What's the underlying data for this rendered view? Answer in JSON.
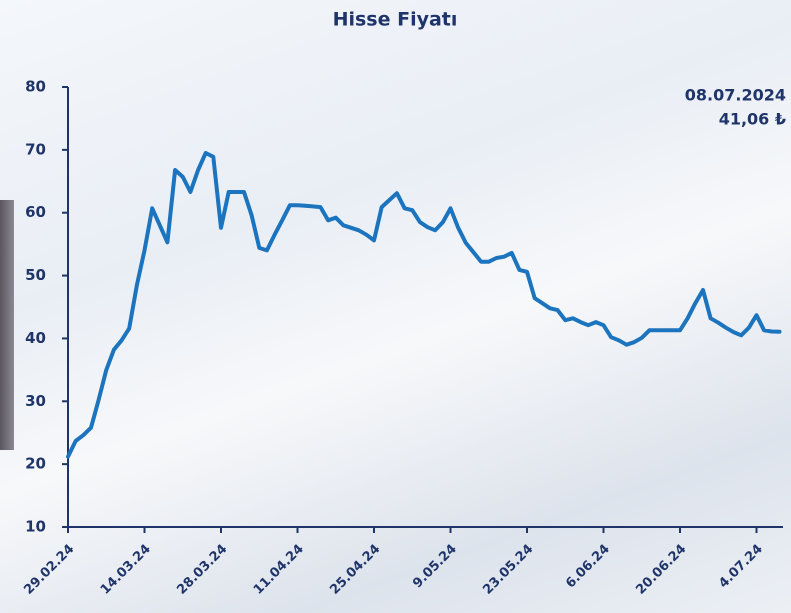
{
  "chart_data": {
    "type": "line",
    "title": "Hisse Fiyatı",
    "annotations": [
      "08.07.2024",
      "41,06 ₺"
    ],
    "categories": [
      "29.02.24",
      null,
      null,
      null,
      null,
      null,
      null,
      null,
      null,
      null,
      "14.03.24",
      null,
      null,
      null,
      null,
      null,
      null,
      null,
      null,
      null,
      "28.03.24",
      null,
      null,
      null,
      null,
      null,
      null,
      null,
      null,
      null,
      "11.04.24",
      null,
      null,
      null,
      null,
      null,
      null,
      null,
      null,
      null,
      "25.04.24",
      null,
      null,
      null,
      null,
      null,
      null,
      null,
      null,
      null,
      "9.05.24",
      null,
      null,
      null,
      null,
      null,
      null,
      null,
      null,
      null,
      "23.05.24",
      null,
      null,
      null,
      null,
      null,
      null,
      null,
      null,
      null,
      "6.06.24",
      null,
      null,
      null,
      null,
      null,
      null,
      null,
      null,
      null,
      "20.06.24",
      null,
      null,
      null,
      null,
      null,
      null,
      null,
      null,
      null,
      "4.07.24",
      null,
      null,
      null
    ],
    "series": [
      {
        "name": "Hisse Fiyatı",
        "color": "#1b74bd",
        "values": [
          21.2,
          23.7,
          24.6,
          25.8,
          30.2,
          35,
          38.2,
          39.7,
          41.6,
          48.5,
          54,
          60.7,
          58,
          55.3,
          66.8,
          65.7,
          63.3,
          66.8,
          69.5,
          68.9,
          57.6,
          63.3,
          63.3,
          63.3,
          59.6,
          54.4,
          54,
          56.5,
          58.8,
          61.2,
          61.2,
          61.1,
          61,
          60.9,
          58.8,
          59.2,
          58,
          57.6,
          57.2,
          56.5,
          55.6,
          60.9,
          62,
          63.1,
          60.7,
          60.4,
          58.5,
          57.7,
          57.2,
          58.5,
          60.7,
          57.6,
          55.2,
          53.7,
          52.2,
          52.2,
          52.8,
          53,
          53.6,
          50.9,
          50.6,
          46.4,
          45.6,
          44.8,
          44.5,
          42.9,
          43.2,
          42.6,
          42.1,
          42.6,
          42.1,
          40.2,
          39.7,
          39,
          39.4,
          40.1,
          41.3,
          41.3,
          41.3,
          41.3,
          41.3,
          43.2,
          45.6,
          47.7,
          43.2,
          42.5,
          41.7,
          41,
          40.5,
          41.7,
          43.7,
          41.3,
          41.1,
          41.06
        ]
      }
    ],
    "ylim": [
      10,
      80
    ],
    "yticks": [
      10,
      20,
      30,
      40,
      50,
      60,
      70,
      80
    ],
    "grid": false
  }
}
